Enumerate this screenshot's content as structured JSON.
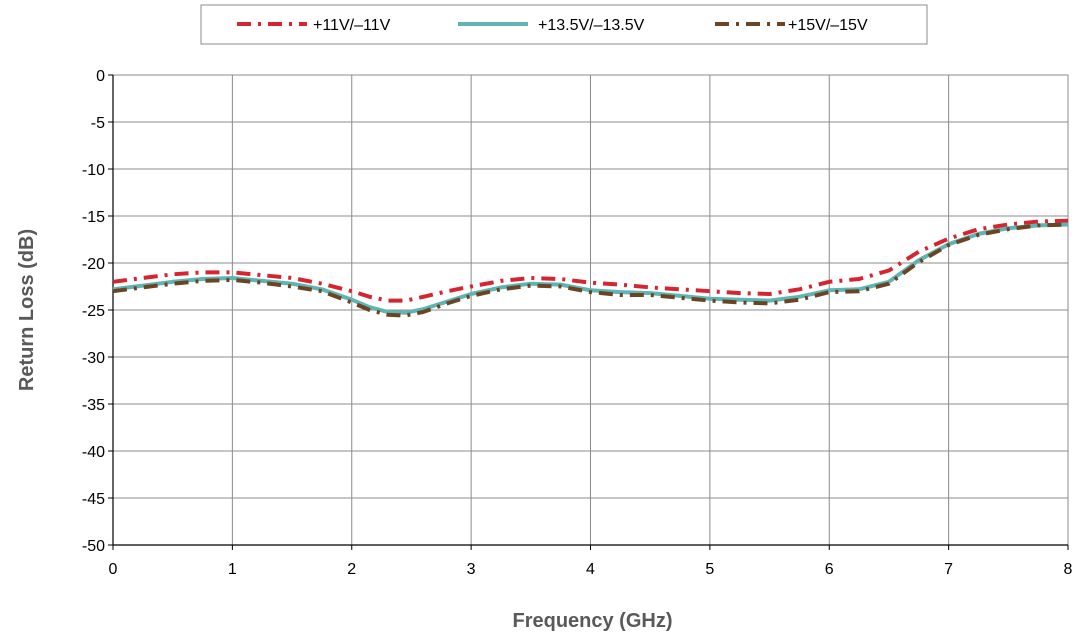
{
  "chart_data": {
    "type": "line",
    "title": "",
    "xlabel": "Frequency (GHz)",
    "ylabel": "Return Loss (dB)",
    "xlim": [
      0,
      8
    ],
    "ylim": [
      -50,
      0
    ],
    "x_ticks": [
      0,
      1,
      2,
      3,
      4,
      5,
      6,
      7,
      8
    ],
    "y_ticks": [
      0,
      -5,
      -10,
      -15,
      -20,
      -25,
      -30,
      -35,
      -40,
      -45,
      -50
    ],
    "grid": true,
    "legend_position": "top-center",
    "series": [
      {
        "name": "+11V/–11V",
        "color": "#d62530",
        "dash": "long-dash-dot",
        "x": [
          0,
          0.25,
          0.5,
          0.75,
          1.0,
          1.25,
          1.5,
          1.75,
          2.0,
          2.15,
          2.3,
          2.45,
          2.6,
          2.8,
          3.0,
          3.25,
          3.5,
          3.75,
          4.0,
          4.25,
          4.5,
          4.75,
          5.0,
          5.25,
          5.5,
          5.75,
          6.0,
          6.25,
          6.5,
          6.75,
          7.0,
          7.25,
          7.5,
          7.75,
          8.0
        ],
        "y": [
          -22.0,
          -21.6,
          -21.2,
          -21.0,
          -21.0,
          -21.3,
          -21.6,
          -22.2,
          -23.0,
          -23.6,
          -24.0,
          -24.0,
          -23.6,
          -23.0,
          -22.5,
          -21.9,
          -21.6,
          -21.7,
          -22.1,
          -22.3,
          -22.6,
          -22.8,
          -23.0,
          -23.2,
          -23.3,
          -22.8,
          -22.0,
          -21.7,
          -20.8,
          -18.8,
          -17.4,
          -16.4,
          -15.9,
          -15.6,
          -15.5
        ]
      },
      {
        "name": "+13.5V/–13.5V",
        "color": "#5fb5b3",
        "dash": "solid",
        "x": [
          0,
          0.25,
          0.5,
          0.75,
          1.0,
          1.25,
          1.5,
          1.75,
          2.0,
          2.15,
          2.3,
          2.45,
          2.6,
          2.8,
          3.0,
          3.25,
          3.5,
          3.75,
          4.0,
          4.25,
          4.5,
          4.75,
          5.0,
          5.25,
          5.5,
          5.75,
          6.0,
          6.25,
          6.5,
          6.75,
          7.0,
          7.25,
          7.5,
          7.75,
          8.0
        ],
        "y": [
          -22.8,
          -22.4,
          -22.0,
          -21.7,
          -21.6,
          -21.9,
          -22.2,
          -22.8,
          -23.9,
          -24.7,
          -25.2,
          -25.3,
          -24.9,
          -24.1,
          -23.3,
          -22.6,
          -22.2,
          -22.3,
          -22.9,
          -23.1,
          -23.2,
          -23.5,
          -23.8,
          -23.9,
          -24.0,
          -23.6,
          -22.9,
          -22.8,
          -22.0,
          -19.7,
          -18.0,
          -16.9,
          -16.3,
          -16.0,
          -15.9
        ]
      },
      {
        "name": "+15V/–15V",
        "color": "#6b4423",
        "dash": "long-dash-dot",
        "x": [
          0,
          0.25,
          0.5,
          0.75,
          1.0,
          1.25,
          1.5,
          1.75,
          2.0,
          2.15,
          2.3,
          2.45,
          2.6,
          2.8,
          3.0,
          3.25,
          3.5,
          3.75,
          4.0,
          4.25,
          4.5,
          4.75,
          5.0,
          5.25,
          5.5,
          5.75,
          6.0,
          6.25,
          6.5,
          6.75,
          7.0,
          7.25,
          7.5,
          7.75,
          8.0
        ],
        "y": [
          -23.0,
          -22.6,
          -22.2,
          -21.9,
          -21.8,
          -22.1,
          -22.5,
          -23.0,
          -24.2,
          -25.0,
          -25.5,
          -25.6,
          -25.2,
          -24.3,
          -23.5,
          -22.8,
          -22.4,
          -22.5,
          -23.1,
          -23.4,
          -23.4,
          -23.7,
          -24.0,
          -24.2,
          -24.3,
          -23.9,
          -23.1,
          -23.0,
          -22.2,
          -19.9,
          -18.1,
          -17.0,
          -16.4,
          -16.0,
          -15.9
        ]
      }
    ]
  }
}
